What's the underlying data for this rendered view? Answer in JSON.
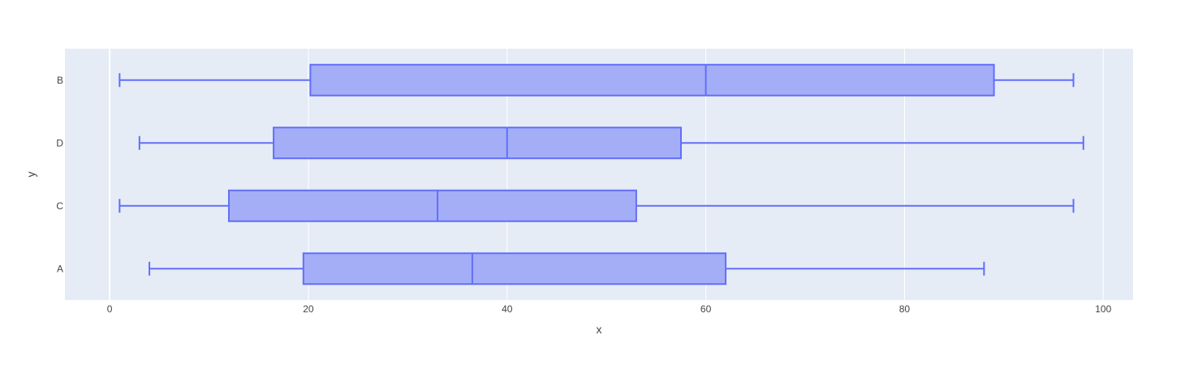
{
  "chart_data": {
    "type": "box",
    "orientation": "horizontal",
    "title": "",
    "xlabel": "x",
    "ylabel": "y",
    "xlim": [
      -4.5,
      103
    ],
    "xticks": [
      0,
      20,
      40,
      60,
      80,
      100
    ],
    "categories": [
      "A",
      "C",
      "D",
      "B"
    ],
    "grid": true,
    "legend": "none",
    "colors": {
      "plot_background": "#e5ecf6",
      "gridline": "#ffffff",
      "box_fill": "#a3aef7",
      "box_line": "#636efa"
    },
    "boxes": [
      {
        "category": "A",
        "min": 4,
        "q1": 19.5,
        "median": 36.5,
        "q3": 62,
        "max": 88
      },
      {
        "category": "C",
        "min": 1,
        "q1": 12,
        "median": 33,
        "q3": 53,
        "max": 97
      },
      {
        "category": "D",
        "min": 3,
        "q1": 16.5,
        "median": 40,
        "q3": 57.5,
        "max": 98
      },
      {
        "category": "B",
        "min": 1,
        "q1": 20.2,
        "median": 60,
        "q3": 89,
        "max": 97
      }
    ]
  }
}
